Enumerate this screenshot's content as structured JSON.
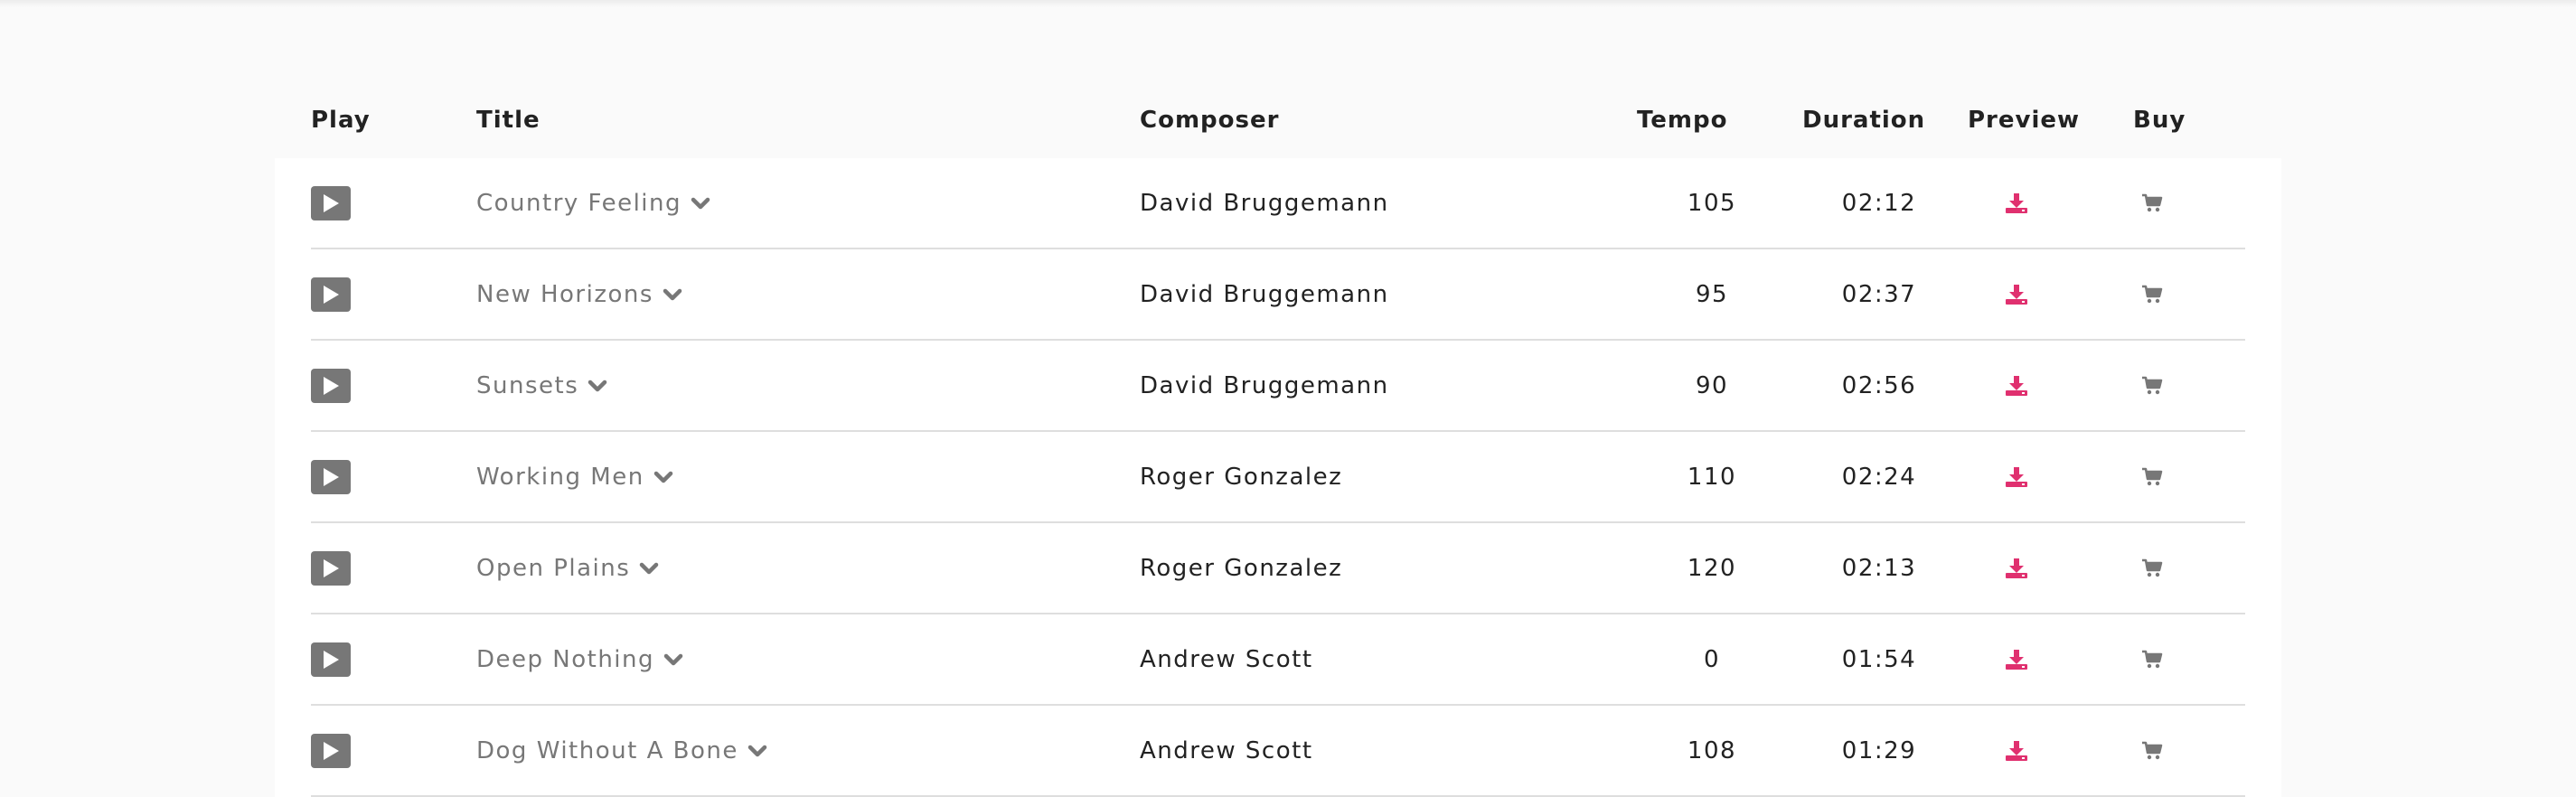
{
  "header": {
    "play": "Play",
    "title": "Title",
    "composer": "Composer",
    "tempo": "Tempo",
    "duration": "Duration",
    "preview": "Preview",
    "buy": "Buy"
  },
  "tracks": [
    {
      "title": "Country Feeling",
      "composer": "David Bruggemann",
      "tempo": "105",
      "duration": "02:12"
    },
    {
      "title": "New Horizons",
      "composer": "David Bruggemann",
      "tempo": "95",
      "duration": "02:37"
    },
    {
      "title": "Sunsets",
      "composer": "David Bruggemann",
      "tempo": "90",
      "duration": "02:56"
    },
    {
      "title": "Working Men",
      "composer": "Roger Gonzalez",
      "tempo": "110",
      "duration": "02:24"
    },
    {
      "title": "Open Plains",
      "composer": "Roger Gonzalez",
      "tempo": "120",
      "duration": "02:13"
    },
    {
      "title": "Deep Nothing",
      "composer": "Andrew Scott",
      "tempo": "0",
      "duration": "01:54"
    },
    {
      "title": "Dog Without A Bone",
      "composer": "Andrew Scott",
      "tempo": "108",
      "duration": "01:29"
    }
  ],
  "icons": {
    "play": "play-icon",
    "expand": "chevron-down-icon",
    "preview": "download-icon",
    "buy": "cart-icon"
  },
  "colors": {
    "accent": "#e0306f",
    "icon_gray": "#777777",
    "divider": "#dedede"
  }
}
